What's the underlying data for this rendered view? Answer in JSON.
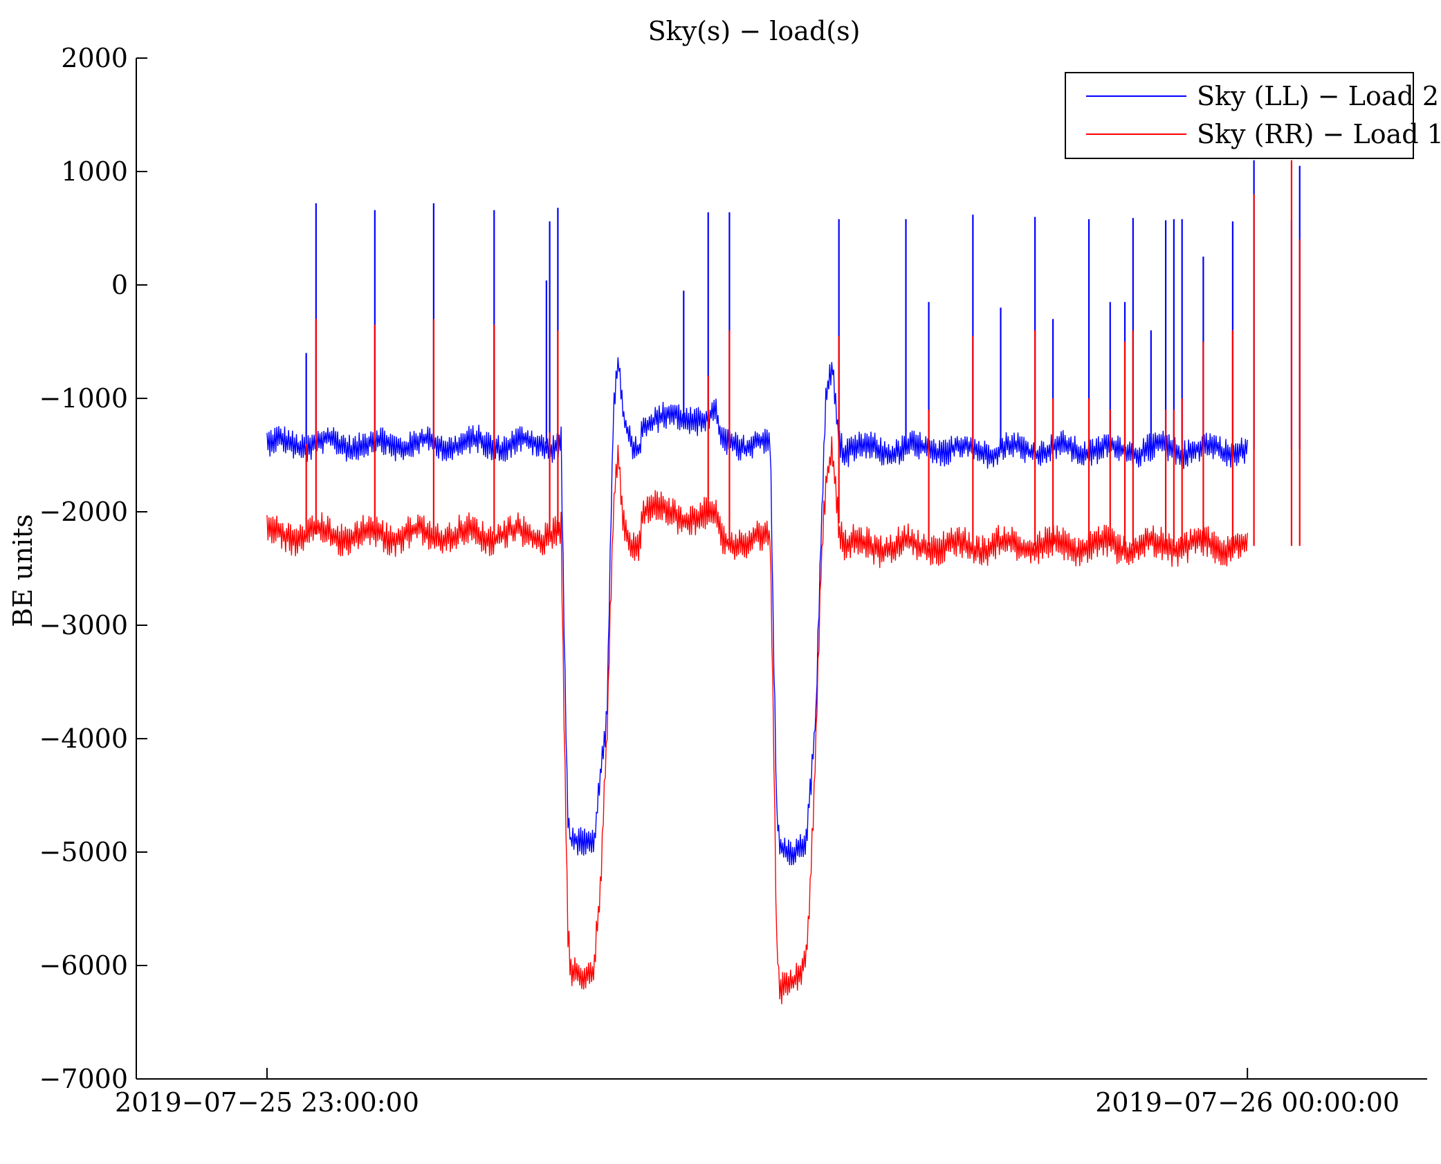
{
  "chart_data": {
    "type": "line",
    "title": "Sky(s) − load(s)",
    "xlabel": "",
    "ylabel": "BE units",
    "ylim": [
      -7000,
      2000
    ],
    "y_ticks": [
      2000,
      1000,
      0,
      -1000,
      -2000,
      -3000,
      -4000,
      -5000,
      -6000,
      -7000
    ],
    "y_tick_labels": [
      "2000",
      "1000",
      "0",
      "−1000",
      "−2000",
      "−3000",
      "−4000",
      "−5000",
      "−6000",
      "−7000"
    ],
    "x_unit": "minutes since 2019-07-25 23:00:00",
    "xlim": [
      -8,
      71
    ],
    "x_ticks": [
      0,
      60
    ],
    "x_tick_labels": [
      "2019−07−25 23:00:00",
      "2019−07−26 00:00:00"
    ],
    "grid": false,
    "legend_position": "top-right",
    "series": [
      {
        "name": "Sky (LL) − Load 2",
        "color": "#0000ff",
        "baseline": [
          [
            0,
            -1400
          ],
          [
            17.5,
            -1400
          ],
          [
            18.0,
            -1380
          ],
          [
            18.2,
            -3200
          ],
          [
            18.4,
            -4700
          ],
          [
            18.6,
            -4950
          ],
          [
            19.5,
            -4920
          ],
          [
            20.0,
            -4880
          ],
          [
            20.4,
            -4300
          ],
          [
            20.8,
            -3800
          ],
          [
            21.2,
            -1100
          ],
          [
            21.5,
            -700
          ],
          [
            21.8,
            -1200
          ],
          [
            22.3,
            -1420
          ],
          [
            22.8,
            -1420
          ],
          [
            23.0,
            -1180
          ],
          [
            25.5,
            -1180
          ],
          [
            26.0,
            -1160
          ],
          [
            27.5,
            -1170
          ],
          [
            27.8,
            -1400
          ],
          [
            30.5,
            -1400
          ],
          [
            30.8,
            -1380
          ],
          [
            31.0,
            -3200
          ],
          [
            31.2,
            -4700
          ],
          [
            31.4,
            -4970
          ],
          [
            32.5,
            -4950
          ],
          [
            33.0,
            -4900
          ],
          [
            33.3,
            -4400
          ],
          [
            33.6,
            -3800
          ],
          [
            33.9,
            -2300
          ],
          [
            34.2,
            -1000
          ],
          [
            34.6,
            -700
          ],
          [
            35.0,
            -1300
          ],
          [
            35.3,
            -1450
          ],
          [
            60,
            -1450
          ]
        ],
        "noise_amp": 130,
        "spikes": [
          [
            2.4,
            -600
          ],
          [
            3.0,
            720
          ],
          [
            6.6,
            660
          ],
          [
            10.2,
            720
          ],
          [
            13.9,
            660
          ],
          [
            17.1,
            40
          ],
          [
            17.3,
            560
          ],
          [
            17.8,
            680
          ],
          [
            25.5,
            -50
          ],
          [
            27.0,
            640
          ],
          [
            28.3,
            640
          ],
          [
            35.0,
            580
          ],
          [
            39.1,
            580
          ],
          [
            40.5,
            -150
          ],
          [
            43.2,
            620
          ],
          [
            44.9,
            -200
          ],
          [
            47.0,
            600
          ],
          [
            48.1,
            -300
          ],
          [
            50.3,
            580
          ],
          [
            51.6,
            -150
          ],
          [
            52.5,
            -150
          ],
          [
            53.0,
            590
          ],
          [
            54.1,
            -400
          ],
          [
            55.0,
            570
          ],
          [
            55.5,
            580
          ],
          [
            56.0,
            580
          ],
          [
            57.3,
            250
          ],
          [
            59.1,
            560
          ],
          [
            60.4,
            1100
          ],
          [
            62.7,
            570
          ],
          [
            63.2,
            1050
          ]
        ]
      },
      {
        "name": "Sky (RR) − Load 1",
        "color": "#ff0000",
        "baseline": [
          [
            0,
            -2200
          ],
          [
            17.5,
            -2200
          ],
          [
            18.0,
            -2180
          ],
          [
            18.2,
            -4000
          ],
          [
            18.4,
            -5700
          ],
          [
            18.6,
            -6100
          ],
          [
            19.5,
            -6050
          ],
          [
            20.0,
            -6000
          ],
          [
            20.4,
            -5300
          ],
          [
            20.8,
            -4000
          ],
          [
            21.2,
            -2000
          ],
          [
            21.5,
            -1500
          ],
          [
            21.8,
            -2100
          ],
          [
            22.3,
            -2250
          ],
          [
            22.8,
            -2250
          ],
          [
            23.0,
            -1950
          ],
          [
            25.5,
            -2050
          ],
          [
            26.0,
            -2030
          ],
          [
            27.5,
            -2050
          ],
          [
            27.8,
            -2250
          ],
          [
            30.5,
            -2250
          ],
          [
            30.8,
            -2230
          ],
          [
            31.0,
            -4000
          ],
          [
            31.2,
            -5800
          ],
          [
            31.4,
            -6150
          ],
          [
            32.5,
            -6100
          ],
          [
            33.0,
            -6000
          ],
          [
            33.3,
            -5200
          ],
          [
            33.6,
            -4000
          ],
          [
            33.9,
            -2500
          ],
          [
            34.2,
            -1700
          ],
          [
            34.6,
            -1400
          ],
          [
            35.0,
            -2100
          ],
          [
            35.3,
            -2300
          ],
          [
            60,
            -2300
          ]
        ],
        "noise_amp": 150,
        "spikes": [
          [
            2.4,
            -1400
          ],
          [
            3.0,
            -300
          ],
          [
            6.6,
            -350
          ],
          [
            10.2,
            -300
          ],
          [
            13.9,
            -350
          ],
          [
            17.3,
            -1300
          ],
          [
            17.8,
            -400
          ],
          [
            27.0,
            -800
          ],
          [
            28.3,
            -400
          ],
          [
            35.0,
            -450
          ],
          [
            40.5,
            -1100
          ],
          [
            43.2,
            -450
          ],
          [
            47.0,
            -400
          ],
          [
            48.1,
            -1000
          ],
          [
            50.3,
            -1000
          ],
          [
            51.6,
            -1100
          ],
          [
            52.5,
            -500
          ],
          [
            53.0,
            -400
          ],
          [
            55.0,
            -1100
          ],
          [
            55.5,
            -1100
          ],
          [
            56.0,
            -1000
          ],
          [
            57.3,
            -500
          ],
          [
            59.1,
            -400
          ],
          [
            60.4,
            800
          ],
          [
            62.7,
            1100
          ],
          [
            63.2,
            400
          ]
        ]
      }
    ]
  }
}
